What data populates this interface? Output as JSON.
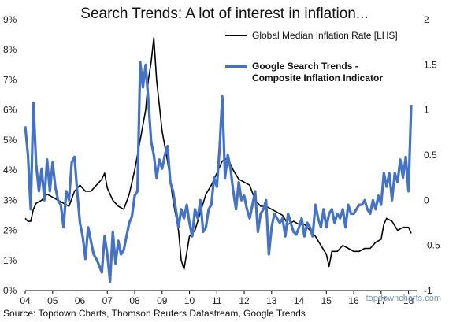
{
  "chart_data": {
    "type": "line",
    "title": "Search Trends: A lot of interest in inflation...",
    "source": "Source: Topdown Charts, Thomson Reuters Datastream, Google Trends",
    "watermark": "topdowncharts.com",
    "x_tick_labels": [
      "04",
      "05",
      "06",
      "07",
      "08",
      "09",
      "10",
      "11",
      "12",
      "13",
      "14",
      "15",
      "16",
      "17",
      "18"
    ],
    "xlim": [
      2004.0,
      2018.3
    ],
    "y_left": {
      "ylim": [
        0,
        9
      ],
      "tick_labels": [
        "0%",
        "1%",
        "2%",
        "3%",
        "4%",
        "5%",
        "6%",
        "7%",
        "8%",
        "9%"
      ]
    },
    "y_right": {
      "ylim": [
        -1,
        2
      ],
      "tick_labels": [
        "-1",
        "-0.5",
        "0",
        "0.5",
        "1",
        "1.5",
        "2"
      ]
    },
    "grid": false,
    "legend_position": "top-right",
    "colors": {
      "inflation": "#000000",
      "search": "#4472c4",
      "watermark": "#7b95c8"
    },
    "series": [
      {
        "name": "Global Median Inflation Rate [LHS]",
        "axis": "left",
        "x": [
          2004.0,
          2004.1,
          2004.2,
          2004.3,
          2004.4,
          2004.6,
          2004.8,
          2005.0,
          2005.2,
          2005.4,
          2005.6,
          2005.8,
          2006.0,
          2006.2,
          2006.4,
          2006.6,
          2006.8,
          2006.9,
          2007.0,
          2007.2,
          2007.4,
          2007.6,
          2007.8,
          2008.0,
          2008.2,
          2008.4,
          2008.5,
          2008.6,
          2008.7,
          2008.8,
          2009.0,
          2009.2,
          2009.4,
          2009.6,
          2009.7,
          2009.8,
          2010.0,
          2010.2,
          2010.4,
          2010.6,
          2010.8,
          2011.0,
          2011.2,
          2011.4,
          2011.6,
          2011.8,
          2012.0,
          2012.2,
          2012.4,
          2012.6,
          2012.8,
          2013.0,
          2013.2,
          2013.4,
          2013.6,
          2013.8,
          2014.0,
          2014.2,
          2014.4,
          2014.6,
          2014.8,
          2015.0,
          2015.1,
          2015.2,
          2015.4,
          2015.6,
          2015.8,
          2016.0,
          2016.2,
          2016.4,
          2016.6,
          2016.8,
          2017.0,
          2017.1,
          2017.2,
          2017.4,
          2017.6,
          2017.8,
          2018.0,
          2018.1
        ],
        "values": [
          2.4,
          2.3,
          2.3,
          2.7,
          2.9,
          3.0,
          3.2,
          3.1,
          3.0,
          2.9,
          2.8,
          3.3,
          3.5,
          3.3,
          3.3,
          3.5,
          3.7,
          3.9,
          3.4,
          3.0,
          2.8,
          2.7,
          3.2,
          4.0,
          5.0,
          6.0,
          7.0,
          7.6,
          8.4,
          7.0,
          5.3,
          4.3,
          3.0,
          2.0,
          1.0,
          0.7,
          1.8,
          2.0,
          2.6,
          3.2,
          3.5,
          3.9,
          4.3,
          4.4,
          4.0,
          3.7,
          3.6,
          3.5,
          3.0,
          2.8,
          2.8,
          2.7,
          2.6,
          2.5,
          2.2,
          2.3,
          2.2,
          2.2,
          2.0,
          1.8,
          1.5,
          1.2,
          0.8,
          1.3,
          1.3,
          1.5,
          1.4,
          1.3,
          1.3,
          1.4,
          1.4,
          1.6,
          1.7,
          2.2,
          2.4,
          2.3,
          2.0,
          2.1,
          2.1,
          1.9
        ]
      },
      {
        "name": "Google Search Trends - Composite Inflation Indicator",
        "axis": "right",
        "x": [
          2004.0,
          2004.1,
          2004.2,
          2004.3,
          2004.4,
          2004.5,
          2004.6,
          2004.7,
          2004.8,
          2004.9,
          2005.0,
          2005.1,
          2005.2,
          2005.3,
          2005.4,
          2005.5,
          2005.6,
          2005.7,
          2005.8,
          2005.9,
          2006.0,
          2006.1,
          2006.2,
          2006.3,
          2006.4,
          2006.5,
          2006.6,
          2006.7,
          2006.8,
          2006.9,
          2007.0,
          2007.1,
          2007.2,
          2007.3,
          2007.4,
          2007.5,
          2007.6,
          2007.7,
          2007.8,
          2007.9,
          2008.0,
          2008.1,
          2008.2,
          2008.3,
          2008.4,
          2008.5,
          2008.6,
          2008.7,
          2008.8,
          2008.9,
          2009.0,
          2009.1,
          2009.2,
          2009.3,
          2009.4,
          2009.5,
          2009.6,
          2009.7,
          2009.8,
          2009.9,
          2010.0,
          2010.1,
          2010.2,
          2010.3,
          2010.4,
          2010.5,
          2010.6,
          2010.7,
          2010.8,
          2010.9,
          2011.0,
          2011.1,
          2011.2,
          2011.3,
          2011.4,
          2011.5,
          2011.6,
          2011.7,
          2011.8,
          2011.9,
          2012.0,
          2012.1,
          2012.2,
          2012.3,
          2012.4,
          2012.5,
          2012.6,
          2012.7,
          2012.8,
          2012.9,
          2013.0,
          2013.1,
          2013.2,
          2013.3,
          2013.4,
          2013.5,
          2013.6,
          2013.7,
          2013.8,
          2013.9,
          2014.0,
          2014.1,
          2014.2,
          2014.3,
          2014.4,
          2014.5,
          2014.6,
          2014.7,
          2014.8,
          2014.9,
          2015.0,
          2015.1,
          2015.2,
          2015.3,
          2015.4,
          2015.5,
          2015.6,
          2015.7,
          2015.8,
          2015.9,
          2016.0,
          2016.1,
          2016.2,
          2016.3,
          2016.4,
          2016.5,
          2016.6,
          2016.7,
          2016.8,
          2016.9,
          2017.0,
          2017.1,
          2017.2,
          2017.3,
          2017.4,
          2017.5,
          2017.6,
          2017.7,
          2017.8,
          2017.9,
          2018.0,
          2018.1
        ],
        "values": [
          0.82,
          0.5,
          -0.1,
          1.08,
          0.4,
          0.1,
          0.35,
          0.0,
          0.45,
          0.1,
          0.42,
          0.15,
          0.0,
          -0.05,
          -0.3,
          0.1,
          0.0,
          0.42,
          0.48,
          0.1,
          -0.25,
          -0.4,
          -0.65,
          -0.3,
          -0.45,
          -0.6,
          -0.65,
          -0.72,
          -0.8,
          -0.4,
          -0.6,
          -0.9,
          -0.35,
          -0.7,
          -0.45,
          -0.6,
          -0.55,
          -0.4,
          -0.25,
          -0.18,
          0.05,
          0.1,
          1.53,
          1.25,
          1.5,
          1.1,
          0.65,
          0.5,
          0.25,
          0.45,
          0.35,
          0.5,
          0.6,
          0.2,
          0.1,
          -0.1,
          -0.3,
          -0.1,
          -0.2,
          -0.05,
          -0.25,
          -0.4,
          -0.1,
          -0.2,
          0.0,
          -0.35,
          -0.3,
          -0.1,
          -0.05,
          0.25,
          0.15,
          0.58,
          1.15,
          0.25,
          0.5,
          0.35,
          0.1,
          -0.1,
          0.2,
          0.0,
          0.05,
          -0.1,
          -0.2,
          -0.05,
          0.1,
          -0.35,
          -0.15,
          -0.1,
          0.0,
          -0.6,
          -0.3,
          -0.15,
          -0.2,
          -0.25,
          -0.2,
          -0.4,
          -0.15,
          -0.25,
          -0.35,
          -0.38,
          -0.3,
          -0.2,
          -0.4,
          -0.25,
          -0.3,
          -0.4,
          -0.05,
          -0.2,
          -0.3,
          -0.1,
          -0.3,
          -0.15,
          -0.1,
          -0.25,
          -0.15,
          -0.2,
          -0.1,
          -0.3,
          -0.05,
          -0.15,
          -0.15,
          -0.1,
          -0.05,
          -0.05,
          0.0,
          -0.1,
          -0.15,
          0.0,
          -0.1,
          0.05,
          -0.05,
          0.3,
          0.15,
          0.3,
          0.0,
          0.3,
          0.2,
          0.45,
          0.25,
          0.48,
          0.1,
          1.05
        ]
      }
    ]
  }
}
